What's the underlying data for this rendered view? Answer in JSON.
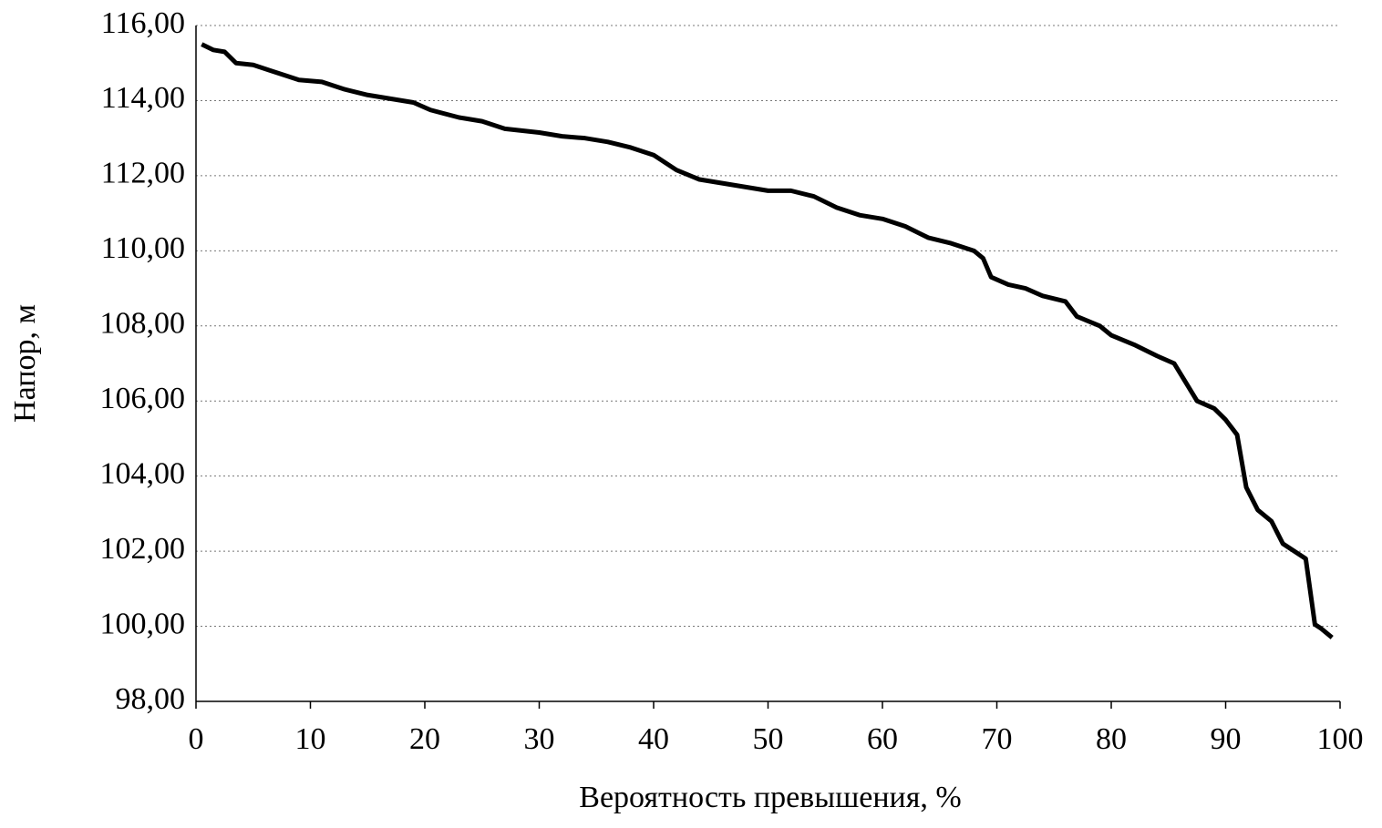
{
  "chart_data": {
    "type": "line",
    "x_label": "Вероятность превышения, %",
    "y_label": "Напор, м",
    "xlim": [
      0,
      100
    ],
    "xticks": [
      0,
      10,
      20,
      30,
      40,
      50,
      60,
      70,
      80,
      90,
      100
    ],
    "ylim": [
      98,
      116
    ],
    "yticks": [
      {
        "value": 98,
        "label": "98,00"
      },
      {
        "value": 100,
        "label": "100,00"
      },
      {
        "value": 102,
        "label": "102,00"
      },
      {
        "value": 104,
        "label": "104,00"
      },
      {
        "value": 106,
        "label": "106,00"
      },
      {
        "value": 108,
        "label": "108,00"
      },
      {
        "value": 110,
        "label": "110,00"
      },
      {
        "value": 112,
        "label": "112,00"
      },
      {
        "value": 114,
        "label": "114,00"
      },
      {
        "value": 116,
        "label": "116,00"
      }
    ],
    "grid": true,
    "series": [
      {
        "color": "#000000",
        "x": [
          0.5,
          1.5,
          2.5,
          3.5,
          5,
          6.5,
          8,
          9,
          11,
          13,
          15,
          17,
          19,
          20.5,
          23,
          25,
          27,
          30,
          32,
          34,
          36,
          38,
          40,
          42,
          44,
          46,
          48,
          50,
          52,
          54,
          56,
          58,
          60,
          62,
          64,
          66,
          68,
          68.8,
          69.5,
          71,
          72.5,
          74,
          76,
          77,
          79,
          80,
          82,
          84,
          85.5,
          86.5,
          87.5,
          89,
          90,
          91,
          91.8,
          92.8,
          94,
          95,
          96,
          97,
          97.8,
          98.3,
          99.3
        ],
        "values": [
          115.5,
          115.35,
          115.3,
          115.0,
          114.95,
          114.8,
          114.65,
          114.55,
          114.5,
          114.3,
          114.15,
          114.05,
          113.95,
          113.75,
          113.55,
          113.45,
          113.25,
          113.15,
          113.05,
          113.0,
          112.9,
          112.75,
          112.55,
          112.15,
          111.9,
          111.8,
          111.7,
          111.6,
          111.6,
          111.45,
          111.15,
          110.95,
          110.85,
          110.65,
          110.35,
          110.2,
          110.0,
          109.8,
          109.3,
          109.1,
          109.0,
          108.8,
          108.65,
          108.25,
          108.0,
          107.75,
          107.5,
          107.2,
          107.0,
          106.5,
          106.0,
          105.8,
          105.5,
          105.1,
          103.7,
          103.1,
          102.8,
          102.2,
          102.0,
          101.8,
          100.05,
          99.95,
          99.7
        ]
      }
    ]
  }
}
